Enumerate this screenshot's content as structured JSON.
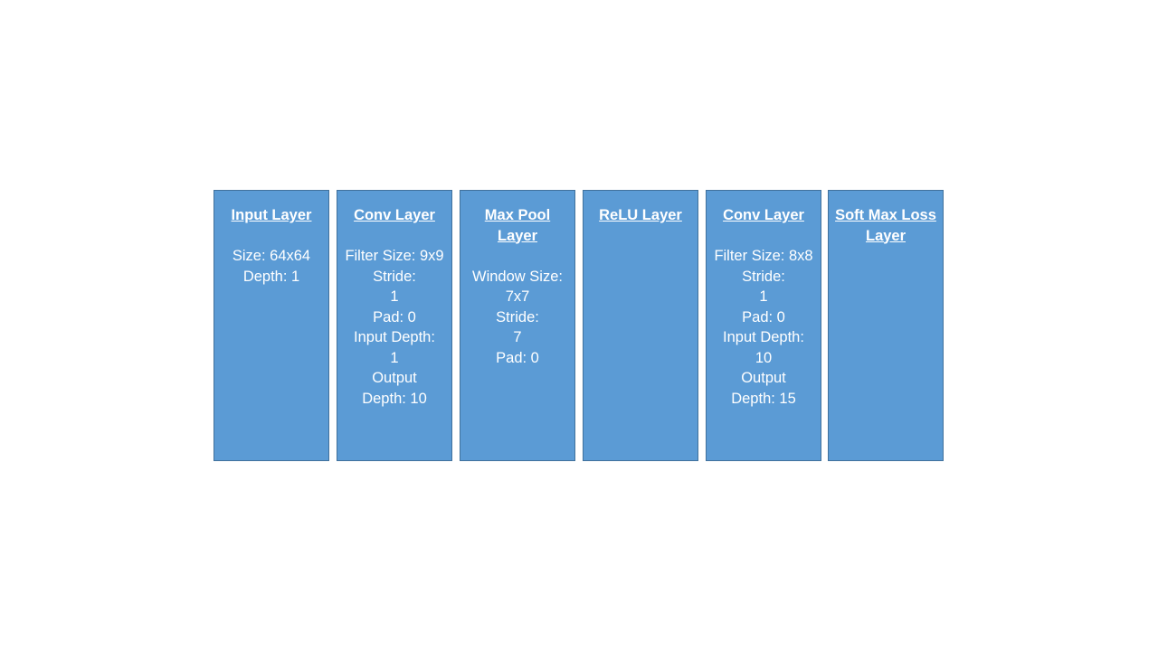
{
  "colors": {
    "box_fill": "#5b9bd5",
    "box_border": "#41719c",
    "text": "#ffffff",
    "background": "#ffffff"
  },
  "layers": [
    {
      "title_lines": [
        "Input Layer"
      ],
      "params": [
        "Size: 64x64",
        "Depth: 1"
      ]
    },
    {
      "title_lines": [
        "Conv Layer"
      ],
      "params": [
        "Filter Size: 9x9",
        "Stride:",
        "1",
        "Pad: 0",
        "Input Depth:",
        "1",
        "Output",
        "Depth: 10"
      ]
    },
    {
      "title_lines": [
        "Max Pool",
        "Layer"
      ],
      "params": [
        "Window Size:",
        "7x7",
        "Stride:",
        "7",
        "Pad: 0"
      ]
    },
    {
      "title_lines": [
        "ReLU Layer"
      ],
      "params": []
    },
    {
      "title_lines": [
        "Conv Layer"
      ],
      "params": [
        "Filter Size: 8x8",
        "Stride:",
        "1",
        "Pad: 0",
        "Input Depth:",
        "10",
        "Output",
        "Depth: 15"
      ]
    },
    {
      "title_lines": [
        "Soft Max Loss",
        "Layer"
      ],
      "params": []
    }
  ]
}
